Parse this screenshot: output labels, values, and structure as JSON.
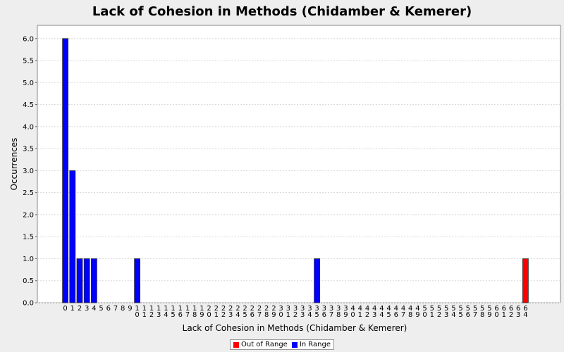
{
  "chart_data": {
    "type": "bar",
    "title": "Lack of Cohesion in Methods (Chidamber & Kemerer)",
    "xlabel": "Lack of Cohesion in Methods (Chidamber & Kemerer)",
    "ylabel": "Occurrences",
    "ylim": [
      0,
      6.3
    ],
    "yticks": [
      "0.0",
      "0.5",
      "1.0",
      "1.5",
      "2.0",
      "2.5",
      "3.0",
      "3.5",
      "4.0",
      "4.5",
      "5.0",
      "5.5",
      "6.0"
    ],
    "grid": true,
    "legend_position": "bottom",
    "categories": [
      "0",
      "1",
      "2",
      "3",
      "4",
      "5",
      "6",
      "7",
      "8",
      "9",
      "10",
      "11",
      "12",
      "13",
      "14",
      "15",
      "16",
      "17",
      "18",
      "19",
      "20",
      "21",
      "22",
      "23",
      "24",
      "25",
      "26",
      "27",
      "28",
      "29",
      "30",
      "31",
      "32",
      "33",
      "34",
      "35",
      "36",
      "37",
      "38",
      "39",
      "40",
      "41",
      "42",
      "43",
      "44",
      "45",
      "46",
      "47",
      "48",
      "49",
      "50",
      "51",
      "52",
      "53",
      "54",
      "55",
      "56",
      "57",
      "58",
      "59",
      "60",
      "61",
      "62",
      "63",
      "64"
    ],
    "series": [
      {
        "name": "In Range",
        "color": "#0000ff",
        "values": [
          6,
          3,
          1,
          1,
          1,
          0,
          0,
          0,
          0,
          0,
          1,
          0,
          0,
          0,
          0,
          0,
          0,
          0,
          0,
          0,
          0,
          0,
          0,
          0,
          0,
          0,
          0,
          0,
          0,
          0,
          0,
          0,
          0,
          0,
          0,
          1,
          0,
          0,
          0,
          0,
          0,
          0,
          0,
          0,
          0,
          0,
          0,
          0,
          0,
          0,
          0,
          0,
          0,
          0,
          0,
          0,
          0,
          0,
          0,
          0,
          0,
          0,
          0,
          0,
          0
        ]
      },
      {
        "name": "Out of Range",
        "color": "#ff0000",
        "values": [
          0,
          0,
          0,
          0,
          0,
          0,
          0,
          0,
          0,
          0,
          0,
          0,
          0,
          0,
          0,
          0,
          0,
          0,
          0,
          0,
          0,
          0,
          0,
          0,
          0,
          0,
          0,
          0,
          0,
          0,
          0,
          0,
          0,
          0,
          0,
          0,
          0,
          0,
          0,
          0,
          0,
          0,
          0,
          0,
          0,
          0,
          0,
          0,
          0,
          0,
          0,
          0,
          0,
          0,
          0,
          0,
          0,
          0,
          0,
          0,
          0,
          0,
          0,
          0,
          1
        ]
      }
    ]
  },
  "legend": {
    "items": [
      {
        "label": "Out of Range",
        "color": "#ff0000"
      },
      {
        "label": "In Range",
        "color": "#0000ff"
      }
    ]
  }
}
